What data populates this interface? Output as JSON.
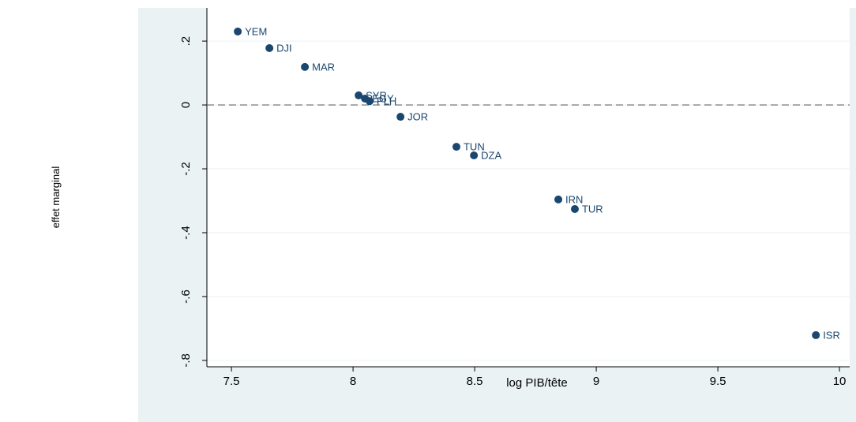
{
  "chart_data": {
    "type": "scatter",
    "x_label": "log PIB/tête",
    "y_label": "effet marginal",
    "labels": [
      "YEM",
      "DJI",
      "MAR",
      "SYR",
      "EGY",
      "PLH",
      "JOR",
      "TUN",
      "DZA",
      "IRN",
      "TUR",
      "ISR"
    ],
    "x": [
      7.526,
      7.656,
      7.802,
      8.023,
      8.049,
      8.068,
      8.195,
      8.425,
      8.497,
      8.844,
      8.912,
      9.903
    ],
    "values": [
      0.23,
      0.178,
      0.119,
      0.03,
      0.02,
      0.012,
      -0.037,
      -0.131,
      -0.158,
      -0.296,
      -0.326,
      -0.721
    ],
    "color": "#1a476f",
    "xlim": [
      7.399,
      10.042
    ],
    "ylim": [
      -0.82,
      0.304
    ],
    "xticks": [
      7.5,
      8,
      8.5,
      9,
      9.5,
      10
    ],
    "yticks": [
      {
        "value": 0.2,
        "label": ".2"
      },
      0,
      {
        "value": -0.2,
        "label": "-.2"
      },
      {
        "value": -0.4,
        "label": "-.4"
      },
      {
        "value": -0.6,
        "label": "-.6"
      },
      {
        "value": -0.8,
        "label": "-.8"
      }
    ],
    "grid": true,
    "reference_line": 0
  }
}
